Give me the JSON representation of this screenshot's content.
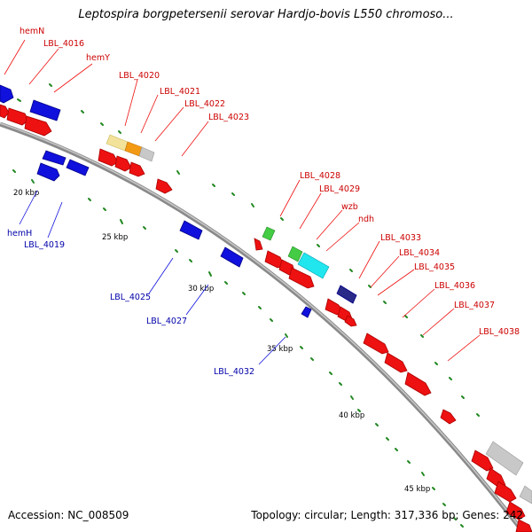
{
  "title": "Leptospira borgpetersenii serovar Hardjo-bovis L550 chromoso...",
  "footer": {
    "accession": "Accession: NC_008509",
    "summary": "Topology: circular; Length: 317,336 bp; Genes: 242"
  },
  "colors": {
    "forward": "#ee1111",
    "reverse": "#1111dd",
    "forward_label": "#cc0000",
    "reverse_label": "#0000aa",
    "backbone": "#999999",
    "gc_dots": "#228822"
  },
  "ticks": [
    {
      "label": "20 kbp"
    },
    {
      "label": "25 kbp"
    },
    {
      "label": "30 kbp"
    },
    {
      "label": "35 kbp"
    },
    {
      "label": "40 kbp"
    },
    {
      "label": "45 kbp"
    }
  ],
  "forward_labels": [
    "hemN",
    "LBL_4016",
    "hemY",
    "LBL_4020",
    "LBL_4021",
    "LBL_4022",
    "LBL_4023",
    "LBL_4028",
    "LBL_4029",
    "wzb",
    "ndh",
    "LBL_4033",
    "LBL_4034",
    "LBL_4035",
    "LBL_4036",
    "LBL_4037",
    "LBL_4038"
  ],
  "reverse_labels": [
    "hemH",
    "LBL_4019",
    "LBL_4025",
    "LBL_4027",
    "LBL_4032"
  ]
}
